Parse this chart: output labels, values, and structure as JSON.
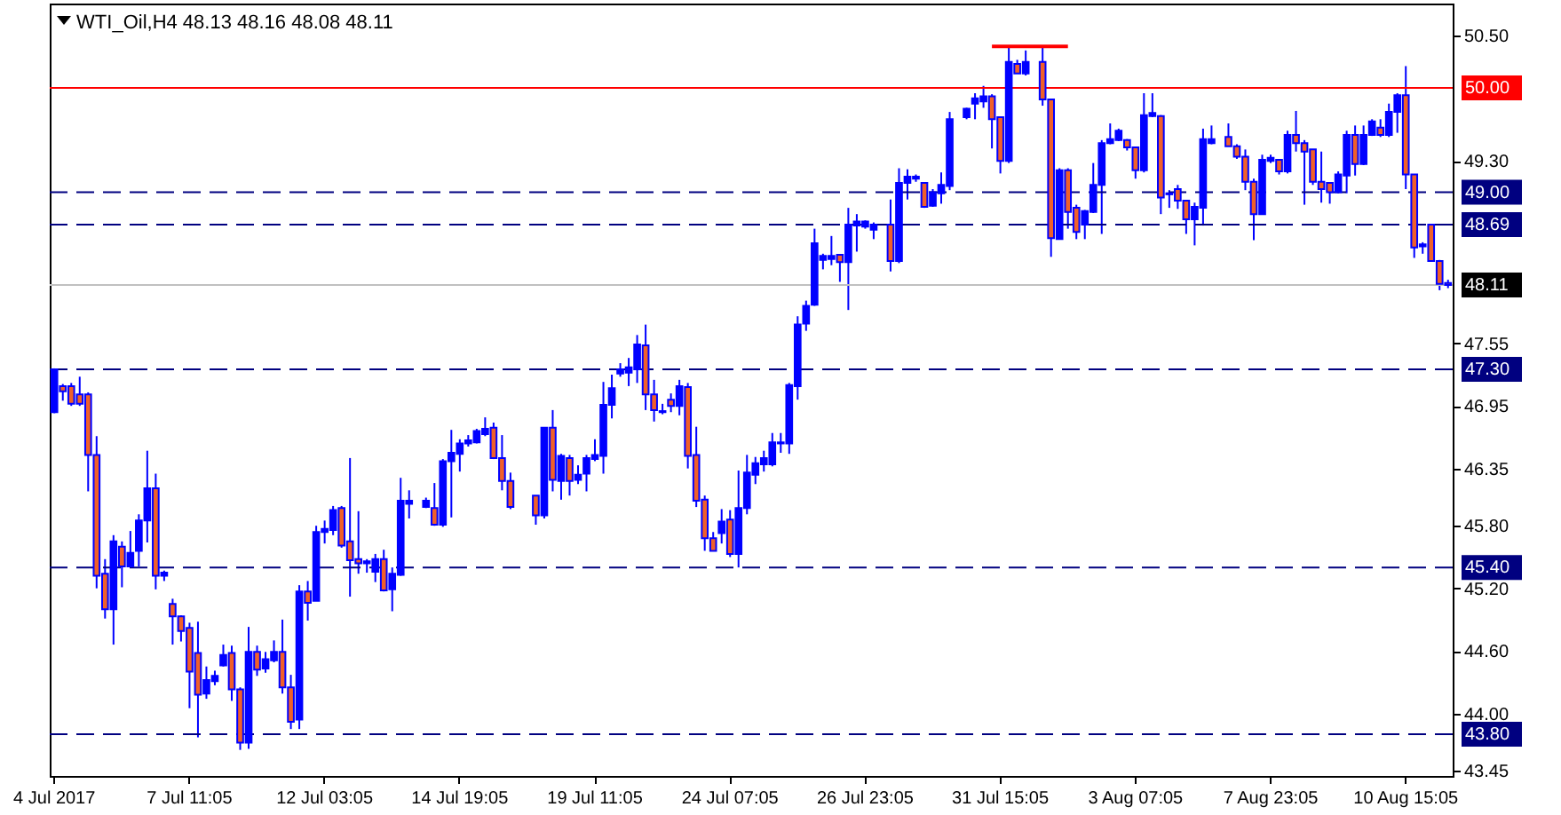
{
  "chart_data": {
    "type": "candlestick",
    "title": "WTI_Oil,H4  48.13 48.16 48.08 48.11",
    "categories": [
      "4 Jul 2017",
      null,
      null,
      null,
      null,
      null,
      null,
      null,
      null,
      null,
      null,
      null,
      null,
      null,
      null,
      null,
      "7 Jul 11:05",
      null,
      null,
      null,
      null,
      null,
      null,
      null,
      null,
      null,
      null,
      null,
      null,
      null,
      null,
      null,
      "12 Jul 03:05",
      null,
      null,
      null,
      null,
      null,
      null,
      null,
      null,
      null,
      null,
      null,
      null,
      null,
      null,
      null,
      "14 Jul 19:05",
      null,
      null,
      null,
      null,
      null,
      null,
      null,
      null,
      null,
      null,
      null,
      null,
      null,
      null,
      null,
      "19 Jul 11:05",
      null,
      null,
      null,
      null,
      null,
      null,
      null,
      null,
      null,
      null,
      null,
      null,
      null,
      null,
      null,
      "24 Jul 07:05",
      null,
      null,
      null,
      null,
      null,
      null,
      null,
      null,
      null,
      null,
      null,
      null,
      null,
      null,
      null,
      "26 Jul 23:05",
      null,
      null,
      null,
      null,
      null,
      null,
      null,
      null,
      null,
      null,
      null,
      null,
      null,
      null,
      null,
      "31 Jul 15:05",
      null,
      null,
      null,
      null,
      null,
      null,
      null,
      null,
      null,
      null,
      null,
      null,
      null,
      null,
      null,
      "3 Aug 07:05",
      null,
      null,
      null,
      null,
      null,
      null,
      null,
      null,
      null,
      null,
      null,
      null,
      null,
      null,
      null,
      "7 Aug 23:05",
      null,
      null,
      null,
      null,
      null,
      null,
      null,
      null,
      null,
      null,
      null,
      null,
      null,
      null,
      null,
      "10 Aug 15:05",
      null,
      null,
      null,
      null,
      null
    ],
    "colors": [
      "#0000ff",
      "#f0602a",
      "#f0602a",
      "#f0602a",
      "#f0602a",
      "#f0602a",
      "#f0602a",
      "#0000ff",
      "#f0602a",
      "#0000ff",
      "#0000ff",
      "#0000ff",
      "#f0602a",
      "#0000ff",
      "#f0602a",
      "#f0602a",
      "#f0602a",
      "#f0602a",
      "#0000ff",
      "#0000ff",
      "#0000ff",
      "#f0602a",
      "#f0602a",
      "#0000ff",
      "#f0602a",
      "#0000ff",
      "#0000ff",
      "#f0602a",
      "#f0602a",
      "#0000ff",
      "#f0602a",
      "#0000ff",
      "#0000ff",
      "#0000ff",
      "#f0602a",
      "#f0602a",
      "#f0602a",
      "#0000ff",
      "#0000ff",
      "#f0602a",
      "#0000ff",
      "#0000ff",
      "#0000ff",
      "#0000ff",
      "#0000ff",
      "#f0602a",
      "#0000ff",
      "#0000ff",
      "#0000ff",
      "#0000ff",
      "#0000ff",
      "#0000ff",
      "#f0602a",
      "#f0602a",
      "#f0602a",
      "#0000ff",
      "#0000ff",
      "#f0602a",
      "#0000ff",
      "#f0602a",
      "#0000ff",
      "#f0602a",
      "#0000ff",
      "#0000ff",
      "#0000ff",
      "#0000ff",
      "#0000ff",
      "#0000ff",
      "#0000ff",
      "#0000ff",
      "#f0602a",
      "#f0602a",
      "#0000ff",
      "#f0602a",
      "#0000ff",
      "#f0602a",
      "#f0602a",
      "#f0602a",
      "#f0602a",
      "#0000ff",
      "#f0602a",
      "#0000ff",
      "#0000ff",
      "#0000ff",
      "#0000ff",
      "#0000ff",
      "#0000ff",
      "#0000ff",
      "#0000ff",
      "#0000ff",
      "#0000ff",
      "#0000ff",
      "#0000ff",
      "#f0602a",
      "#0000ff",
      "#0000ff",
      "#0000ff",
      "#0000ff",
      "#0000ff",
      "#f0602a",
      "#0000ff",
      "#0000ff",
      "#0000ff",
      "#f0602a",
      "#0000ff",
      "#0000ff",
      "#0000ff",
      "#0000ff",
      "#0000ff",
      "#0000ff",
      "#0000ff",
      "#f0602a",
      "#f0602a",
      "#0000ff",
      "#f0602a",
      "#0000ff",
      "#0000ff",
      "#f0602a",
      "#f0602a",
      "#0000ff",
      "#f0602a",
      "#f0602a",
      "#0000ff",
      "#0000ff",
      "#0000ff",
      "#0000ff",
      "#0000ff",
      "#f0602a",
      "#f0602a",
      "#0000ff",
      "#0000ff",
      "#f0602a",
      "#0000ff",
      "#f0602a",
      "#f0602a",
      "#0000ff",
      "#0000ff",
      "#0000ff",
      "#0000ff",
      "#f0602a",
      "#f0602a",
      "#f0602a",
      "#f0602a",
      "#0000ff",
      "#0000ff",
      "#f0602a",
      "#0000ff",
      "#f0602a",
      "#f0602a",
      "#f0602a",
      "#f0602a",
      "#f0602a",
      "#0000ff",
      "#0000ff",
      "#f0602a",
      "#0000ff",
      "#0000ff",
      "#f0602a",
      "#0000ff",
      "#0000ff",
      "#f0602a",
      "#f0602a",
      "#0000ff",
      "#f0602a",
      "#f0602a",
      "#f0602a"
    ],
    "ohlc": [
      [
        46.89,
        47.31,
        46.88,
        47.3
      ],
      [
        47.14,
        47.16,
        47.0,
        47.09
      ],
      [
        47.14,
        47.17,
        46.95,
        46.97
      ],
      [
        47.06,
        47.23,
        46.95,
        46.97
      ],
      [
        47.06,
        47.08,
        46.13,
        46.48
      ],
      [
        46.48,
        46.66,
        45.2,
        45.32
      ],
      [
        45.34,
        45.48,
        44.91,
        45.0
      ],
      [
        45.0,
        45.71,
        44.66,
        45.65
      ],
      [
        45.6,
        45.65,
        45.21,
        45.41
      ],
      [
        45.41,
        45.75,
        45.41,
        45.54
      ],
      [
        45.56,
        45.91,
        45.41,
        45.85
      ],
      [
        45.85,
        46.52,
        45.64,
        46.16
      ],
      [
        46.16,
        46.3,
        45.19,
        45.32
      ],
      [
        45.32,
        45.37,
        45.27,
        45.35
      ],
      [
        45.05,
        45.1,
        44.66,
        44.93
      ],
      [
        44.93,
        44.94,
        44.69,
        44.79
      ],
      [
        44.82,
        44.87,
        44.05,
        44.4
      ],
      [
        44.58,
        44.88,
        43.77,
        44.18
      ],
      [
        44.19,
        44.45,
        44.14,
        44.32
      ],
      [
        44.31,
        44.41,
        44.27,
        44.36
      ],
      [
        44.46,
        44.66,
        44.45,
        44.56
      ],
      [
        44.58,
        44.65,
        44.12,
        44.23
      ],
      [
        44.23,
        44.25,
        43.65,
        43.72
      ],
      [
        43.72,
        44.83,
        43.66,
        44.59
      ],
      [
        44.59,
        44.65,
        44.36,
        44.42
      ],
      [
        44.43,
        44.59,
        44.39,
        44.52
      ],
      [
        44.51,
        44.7,
        44.49,
        44.59
      ],
      [
        44.59,
        44.9,
        44.19,
        44.25
      ],
      [
        44.25,
        44.37,
        43.85,
        43.92
      ],
      [
        43.94,
        45.23,
        43.85,
        45.17
      ],
      [
        45.17,
        45.27,
        44.89,
        45.06
      ],
      [
        45.08,
        45.8,
        45.08,
        45.74
      ],
      [
        45.74,
        45.85,
        45.63,
        45.77
      ],
      [
        45.76,
        45.99,
        45.71,
        45.95
      ],
      [
        45.97,
        45.99,
        45.59,
        45.61
      ],
      [
        45.65,
        46.45,
        45.12,
        45.47
      ],
      [
        45.48,
        45.94,
        45.34,
        45.44
      ],
      [
        45.44,
        45.48,
        45.35,
        45.46
      ],
      [
        45.36,
        45.53,
        45.26,
        45.48
      ],
      [
        45.48,
        45.57,
        45.17,
        45.18
      ],
      [
        45.19,
        45.4,
        44.98,
        45.34
      ],
      [
        45.33,
        46.26,
        45.32,
        46.04
      ],
      [
        46.01,
        46.14,
        45.87,
        46.04
      ],
      null,
      [
        45.98,
        46.07,
        45.97,
        46.04
      ],
      [
        45.97,
        46.21,
        45.8,
        45.81
      ],
      [
        45.81,
        46.44,
        45.79,
        46.42
      ],
      [
        46.42,
        46.72,
        45.88,
        46.5
      ],
      [
        46.49,
        46.63,
        46.32,
        46.59
      ],
      [
        46.59,
        46.67,
        46.56,
        46.62
      ],
      [
        46.6,
        46.73,
        46.59,
        46.71
      ],
      [
        46.68,
        46.84,
        46.66,
        46.73
      ],
      [
        46.74,
        46.79,
        46.44,
        46.45
      ],
      [
        46.45,
        46.67,
        46.14,
        46.23
      ],
      [
        46.23,
        46.31,
        45.96,
        45.98
      ],
      null,
      null,
      [
        46.09,
        46.09,
        45.81,
        45.9
      ],
      [
        45.9,
        46.74,
        45.87,
        46.74
      ],
      [
        46.74,
        46.91,
        46.13,
        46.24
      ],
      [
        46.23,
        46.49,
        46.05,
        46.47
      ],
      [
        46.45,
        46.48,
        46.09,
        46.23
      ],
      [
        46.24,
        46.38,
        46.2,
        46.29
      ],
      [
        46.3,
        46.48,
        46.13,
        46.45
      ],
      [
        46.44,
        46.63,
        46.42,
        46.48
      ],
      [
        46.47,
        47.18,
        46.3,
        46.96
      ],
      [
        46.96,
        47.25,
        46.83,
        47.12
      ],
      [
        47.26,
        47.36,
        47.23,
        47.3
      ],
      [
        47.27,
        47.41,
        47.14,
        47.32
      ],
      [
        47.3,
        47.63,
        47.17,
        47.54
      ],
      [
        47.53,
        47.73,
        46.91,
        47.06
      ],
      [
        47.06,
        47.2,
        46.8,
        46.91
      ],
      [
        46.89,
        46.97,
        46.87,
        46.9
      ],
      [
        47.01,
        47.07,
        46.89,
        46.95
      ],
      [
        46.95,
        47.2,
        46.86,
        47.14
      ],
      [
        47.13,
        47.17,
        46.35,
        46.47
      ],
      [
        46.48,
        46.75,
        45.98,
        46.04
      ],
      [
        46.05,
        46.09,
        45.56,
        45.68
      ],
      [
        45.68,
        45.74,
        45.56,
        45.56
      ],
      [
        45.73,
        45.96,
        45.63,
        45.84
      ],
      [
        45.86,
        45.95,
        45.5,
        45.53
      ],
      [
        45.53,
        46.33,
        45.4,
        45.97
      ],
      [
        45.97,
        46.48,
        45.91,
        46.31
      ],
      [
        46.29,
        46.46,
        46.2,
        46.4
      ],
      [
        46.39,
        46.52,
        46.32,
        46.45
      ],
      [
        46.39,
        46.69,
        46.37,
        46.6
      ],
      [
        46.59,
        46.69,
        46.5,
        46.6
      ],
      [
        46.59,
        47.17,
        46.49,
        47.15
      ],
      [
        47.14,
        47.81,
        47.01,
        47.73
      ],
      [
        47.74,
        47.96,
        47.67,
        47.91
      ],
      [
        47.92,
        48.65,
        47.91,
        48.51
      ],
      [
        48.35,
        48.41,
        48.26,
        48.39
      ],
      [
        48.36,
        48.58,
        48.3,
        48.39
      ],
      [
        48.4,
        48.4,
        48.14,
        48.33
      ],
      [
        48.33,
        48.85,
        47.87,
        48.69
      ],
      [
        48.68,
        48.79,
        48.43,
        48.72
      ],
      [
        48.67,
        48.73,
        48.65,
        48.72
      ],
      [
        48.64,
        48.71,
        48.55,
        48.69
      ],
      null,
      [
        48.69,
        48.93,
        48.24,
        48.34
      ],
      [
        48.34,
        49.23,
        48.32,
        49.09
      ],
      [
        49.09,
        49.22,
        48.93,
        49.15
      ],
      [
        49.13,
        49.17,
        49.1,
        49.15
      ],
      [
        49.09,
        49.09,
        48.85,
        48.86
      ],
      [
        48.87,
        49.03,
        48.86,
        49.0
      ],
      [
        48.99,
        49.19,
        48.89,
        49.07
      ],
      [
        49.06,
        49.77,
        49.02,
        49.7
      ],
      null,
      [
        49.72,
        49.81,
        49.7,
        49.8
      ],
      [
        49.85,
        49.95,
        49.7,
        49.9
      ],
      [
        49.87,
        50.02,
        49.81,
        49.92
      ],
      [
        49.92,
        49.94,
        49.42,
        49.7
      ],
      [
        49.72,
        49.72,
        49.18,
        49.3
      ],
      [
        49.3,
        50.4,
        49.28,
        50.25
      ],
      [
        50.23,
        50.27,
        50.14,
        50.14
      ],
      [
        50.14,
        50.36,
        50.12,
        50.25
      ],
      null,
      [
        50.25,
        50.4,
        49.83,
        49.89
      ],
      [
        49.89,
        49.89,
        48.38,
        48.56
      ],
      [
        48.55,
        49.23,
        48.55,
        49.21
      ],
      [
        49.21,
        49.23,
        48.65,
        48.81
      ],
      [
        48.85,
        48.88,
        48.55,
        48.62
      ],
      [
        48.69,
        48.83,
        48.55,
        48.82
      ],
      [
        48.81,
        49.28,
        48.8,
        49.07
      ],
      [
        49.07,
        49.5,
        48.6,
        49.47
      ],
      [
        49.47,
        49.66,
        49.46,
        49.51
      ],
      [
        49.5,
        49.61,
        49.49,
        49.59
      ],
      [
        49.5,
        49.51,
        49.4,
        49.43
      ],
      [
        49.43,
        49.43,
        49.13,
        49.21
      ],
      [
        49.21,
        49.95,
        49.19,
        49.74
      ],
      [
        49.73,
        49.95,
        49.72,
        49.76
      ],
      [
        49.73,
        49.74,
        48.79,
        48.95
      ],
      [
        48.98,
        49.02,
        48.85,
        48.99
      ],
      [
        49.03,
        49.07,
        48.84,
        48.92
      ],
      [
        48.92,
        48.92,
        48.6,
        48.74
      ],
      [
        48.74,
        48.9,
        48.49,
        48.86
      ],
      [
        48.85,
        49.61,
        48.68,
        49.51
      ],
      [
        49.47,
        49.64,
        49.46,
        49.51
      ],
      null,
      [
        49.53,
        49.66,
        49.44,
        49.44
      ],
      [
        49.44,
        49.46,
        49.32,
        49.34
      ],
      [
        49.34,
        49.41,
        49.02,
        49.1
      ],
      [
        49.1,
        49.13,
        48.54,
        48.79
      ],
      [
        48.79,
        49.36,
        48.79,
        49.31
      ],
      [
        49.3,
        49.36,
        49.28,
        49.33
      ],
      [
        49.31,
        49.31,
        49.17,
        49.2
      ],
      [
        49.2,
        49.59,
        49.18,
        49.55
      ],
      [
        49.55,
        49.78,
        49.39,
        49.47
      ],
      [
        49.47,
        49.5,
        48.88,
        49.39
      ],
      [
        49.41,
        49.41,
        49.07,
        49.1
      ],
      [
        49.1,
        49.39,
        48.9,
        49.03
      ],
      [
        49.09,
        49.09,
        48.89,
        49.0
      ],
      [
        49.0,
        49.2,
        48.99,
        49.17
      ],
      [
        49.16,
        49.59,
        48.99,
        49.55
      ],
      [
        49.55,
        49.64,
        49.16,
        49.27
      ],
      [
        49.27,
        49.64,
        49.26,
        49.55
      ],
      [
        49.55,
        49.7,
        49.54,
        49.68
      ],
      [
        49.62,
        49.7,
        49.53,
        49.55
      ],
      [
        49.55,
        49.85,
        49.53,
        49.77
      ],
      [
        49.77,
        49.95,
        49.57,
        49.93
      ],
      [
        49.93,
        50.21,
        49.03,
        49.17
      ],
      [
        49.17,
        49.17,
        48.37,
        48.47
      ],
      [
        48.48,
        48.52,
        48.41,
        48.5
      ],
      [
        48.69,
        48.69,
        48.34,
        48.34
      ],
      [
        48.34,
        48.35,
        48.06,
        48.12
      ],
      [
        48.13,
        48.16,
        48.08,
        48.11
      ]
    ],
    "series": [
      {
        "type": "line",
        "color": "#ff0000",
        "values": [
          null,
          null,
          null,
          null,
          null,
          null,
          null,
          null,
          null,
          null,
          null,
          null,
          null,
          null,
          null,
          null,
          null,
          null,
          null,
          null,
          null,
          null,
          null,
          null,
          null,
          null,
          null,
          null,
          null,
          null,
          null,
          null,
          null,
          null,
          null,
          null,
          null,
          null,
          null,
          null,
          null,
          null,
          null,
          null,
          null,
          null,
          null,
          null,
          null,
          null,
          null,
          null,
          null,
          null,
          null,
          null,
          null,
          null,
          null,
          null,
          null,
          null,
          null,
          null,
          null,
          null,
          null,
          null,
          null,
          null,
          null,
          null,
          null,
          null,
          null,
          null,
          null,
          null,
          null,
          null,
          null,
          null,
          null,
          null,
          null,
          null,
          null,
          null,
          null,
          null,
          null,
          null,
          null,
          null,
          null,
          null,
          null,
          null,
          null,
          null,
          null,
          null,
          null,
          null,
          null,
          null,
          null,
          null,
          null,
          null,
          null,
          50.4,
          50.4,
          50.4,
          50.4,
          50.4,
          50.4,
          50.4,
          50.4,
          50.4,
          50.4,
          null,
          null,
          null,
          null,
          null,
          null,
          null,
          null,
          null,
          null,
          null,
          null,
          null,
          null,
          null,
          null,
          null,
          null,
          null,
          null,
          null,
          null,
          null,
          null,
          null,
          null,
          null,
          null,
          null,
          null,
          null,
          null,
          null,
          null,
          null,
          null,
          null,
          null,
          null,
          null,
          null,
          null,
          null,
          null,
          null
        ]
      }
    ],
    "ylim": [
      43.4,
      50.81
    ],
    "yticks": [
      {
        "value": 50.5,
        "label": "50.50"
      },
      {
        "value": 49.3,
        "label": "49.30"
      },
      {
        "value": 47.55,
        "label": "47.55"
      },
      {
        "value": 46.95,
        "label": "46.95"
      },
      {
        "value": 46.35,
        "label": "46.35"
      },
      {
        "value": 45.8,
        "label": "45.80"
      },
      {
        "value": 45.2,
        "label": "45.20"
      },
      {
        "value": 44.6,
        "label": "44.60"
      },
      {
        "value": 44.0,
        "label": "44.00"
      },
      {
        "value": 43.45,
        "label": "43.45"
      }
    ],
    "ref_lines": [
      {
        "axis": "y",
        "value": 50.0,
        "label": "50.00",
        "color": "#ff0000",
        "line_style": "solid"
      },
      {
        "axis": "y",
        "value": 49.0,
        "label": "49.00",
        "color": "#000080",
        "line_style": "dashed"
      },
      {
        "axis": "y",
        "value": 48.69,
        "label": "48.69",
        "color": "#000080",
        "line_style": "dashed"
      },
      {
        "axis": "y",
        "value": 48.11,
        "label": "48.11",
        "color": "#c0c0c0",
        "line_style": "solid"
      },
      {
        "axis": "y",
        "value": 47.3,
        "label": "47.30",
        "color": "#000080",
        "line_style": "dashed"
      },
      {
        "axis": "y",
        "value": 45.4,
        "label": "45.40",
        "color": "#000080",
        "line_style": "dashed"
      },
      {
        "axis": "y",
        "value": 43.8,
        "label": "43.80",
        "color": "#000080",
        "line_style": "dashed"
      }
    ]
  }
}
